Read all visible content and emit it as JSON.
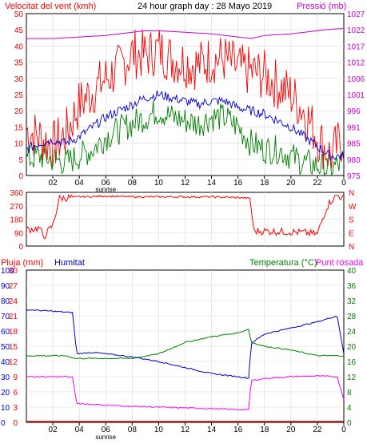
{
  "header": {
    "wind_label": "Velocitat del vent (kmh)",
    "title": "24 hour graph day : 28 Mayo 2019",
    "pressure_label": "Pressió (mb)"
  },
  "bottom_header": {
    "rain_label": "Pluja (mm)",
    "humidity_label": "Humitat",
    "temperature_label": "Temperatura (°C)",
    "dewpoint_label": "Punt rosada"
  },
  "sunrise_label": "sunrise",
  "x_axis": {
    "ticks": [
      "02",
      "04",
      "06",
      "08",
      "10",
      "12",
      "14",
      "16",
      "18",
      "20",
      "22",
      "0"
    ]
  },
  "colors": {
    "wind": "#ff0000",
    "gust_avg": "#0000cc",
    "wind_green": "#007f00",
    "pressure": "#cc00cc",
    "humidity": "#0000cc",
    "temperature": "#007f00",
    "dewpoint": "#ff00ff",
    "rain": "#cc0000",
    "grid": "#d8d8d8"
  },
  "chart_data": [
    {
      "type": "line",
      "title": "24 hour graph day : 28 Mayo 2019",
      "xlabel": "",
      "ylabel_left": "Velocitat del vent (kmh)",
      "ylabel_right": "Pressió (mb)",
      "x_range_hours": [
        0,
        24
      ],
      "ylim_left": [
        0,
        50
      ],
      "ylim_right": [
        975,
        1027
      ],
      "left_ticks": [
        "0",
        "5",
        "10",
        "15",
        "20",
        "25",
        "30",
        "35",
        "40",
        "45",
        "50"
      ],
      "right_ticks": [
        "975",
        "980",
        "985",
        "991",
        "996",
        "1001",
        "1006",
        "1012",
        "1017",
        "1022",
        "1027"
      ],
      "grid": true,
      "series": [
        {
          "name": "Velocitat del vent (kmh)",
          "hours": [
            0,
            1,
            2,
            3,
            4,
            5,
            6,
            7,
            8,
            9,
            10,
            11,
            12,
            13,
            14,
            15,
            16,
            17,
            18,
            19,
            20,
            21,
            22,
            23,
            24
          ],
          "values": [
            14,
            12,
            9,
            13,
            22,
            26,
            30,
            33,
            38,
            37,
            39,
            36,
            35,
            34,
            36,
            36,
            33,
            32,
            31,
            28,
            25,
            20,
            12,
            6,
            12
          ]
        },
        {
          "hours": [
            0,
            1,
            2,
            3,
            4,
            5,
            6,
            7,
            8,
            9,
            10,
            11,
            12,
            13,
            14,
            15,
            16,
            17,
            18,
            19,
            20,
            21,
            22,
            23,
            24
          ],
          "values": [
            8,
            10,
            11,
            10,
            12,
            15,
            18,
            20,
            22,
            24,
            25,
            24,
            23,
            22,
            23,
            23,
            21,
            20,
            19,
            17,
            15,
            12,
            9,
            6,
            6
          ]
        },
        {
          "hours": [
            0,
            1,
            2,
            3,
            4,
            5,
            6,
            7,
            8,
            9,
            10,
            11,
            12,
            13,
            14,
            15,
            16,
            17,
            18,
            19,
            20,
            21,
            22,
            23,
            24
          ],
          "values": [
            5,
            6,
            5,
            4,
            6,
            8,
            12,
            14,
            16,
            18,
            20,
            18,
            17,
            16,
            18,
            18,
            15,
            10,
            8,
            8,
            6,
            4,
            3,
            2,
            4
          ]
        },
        {
          "name": "Pressió (mb)",
          "hours": [
            0,
            2,
            4,
            6,
            8,
            9,
            10,
            12,
            14,
            16,
            17,
            18,
            20,
            22,
            23,
            24
          ],
          "values": [
            1019,
            1019,
            1019.5,
            1020,
            1021,
            1021.5,
            1021.5,
            1021,
            1020.5,
            1019.5,
            1019,
            1020,
            1020.5,
            1021.5,
            1022,
            1022.2
          ]
        }
      ]
    },
    {
      "type": "scatter",
      "xlabel": "",
      "ylabel_right": "direction",
      "ylim_left": [
        0,
        360
      ],
      "left_ticks": [
        "0",
        "90",
        "180",
        "270",
        "360"
      ],
      "right_ticks": [
        "N",
        "W",
        "S",
        "E",
        "N"
      ],
      "series": [
        {
          "hours": [
            0,
            1,
            1.3,
            2,
            2.5,
            4,
            6,
            8,
            10,
            12,
            14,
            16,
            16.9,
            17.2,
            18,
            20,
            21,
            22,
            22.7,
            23,
            23.5,
            24
          ],
          "values": [
            110,
            120,
            60,
            140,
            320,
            330,
            335,
            330,
            330,
            330,
            330,
            325,
            320,
            100,
            100,
            95,
            90,
            80,
            260,
            300,
            340,
            320
          ]
        }
      ]
    },
    {
      "type": "line",
      "xlabel": "",
      "ylim_rain": [
        0,
        30
      ],
      "ylim_humidity": [
        0,
        100
      ],
      "ylim_temperature": [
        0,
        40
      ],
      "rain_ticks": [
        "0",
        "3",
        "6",
        "9",
        "12",
        "15",
        "18",
        "21",
        "24",
        "27",
        "30"
      ],
      "humidity_ticks": [
        "0",
        "10",
        "20",
        "30",
        "40",
        "50",
        "60",
        "70",
        "80",
        "90",
        "100"
      ],
      "temperature_ticks": [
        "0",
        "4",
        "8",
        "12",
        "16",
        "20",
        "24",
        "28",
        "32",
        "36",
        "40"
      ],
      "series": [
        {
          "name": "Pluja (mm)",
          "hours": [
            0,
            24
          ],
          "values": [
            0,
            0
          ]
        },
        {
          "name": "Humitat",
          "hours": [
            0,
            2,
            3.5,
            3.8,
            5,
            8,
            10,
            12,
            14,
            16,
            16.8,
            17,
            18,
            20,
            22,
            23.5,
            24
          ],
          "values": [
            74,
            73,
            72,
            45,
            46,
            43,
            40,
            36,
            32,
            30,
            29,
            52,
            58,
            62,
            66,
            70,
            45
          ]
        },
        {
          "name": "Temperatura (°C)",
          "hours": [
            0,
            3,
            3.7,
            6,
            8,
            10,
            12,
            14,
            16,
            16.8,
            17,
            18,
            20,
            22,
            24
          ],
          "values": [
            17.5,
            17.5,
            16.8,
            16.8,
            16.8,
            18,
            21,
            22.5,
            23.5,
            24.5,
            21,
            20,
            19,
            17.5,
            17.5
          ]
        },
        {
          "name": "Punt rosada",
          "hours": [
            0,
            3,
            3.5,
            3.8,
            6,
            8,
            10,
            12,
            14,
            16,
            16.8,
            17,
            18,
            20,
            22,
            23.5,
            24
          ],
          "values": [
            12,
            12,
            11.8,
            5,
            4.5,
            4.2,
            4,
            3.8,
            3.6,
            3.4,
            3.3,
            11,
            11.5,
            12,
            12.2,
            12,
            6
          ]
        }
      ]
    }
  ]
}
